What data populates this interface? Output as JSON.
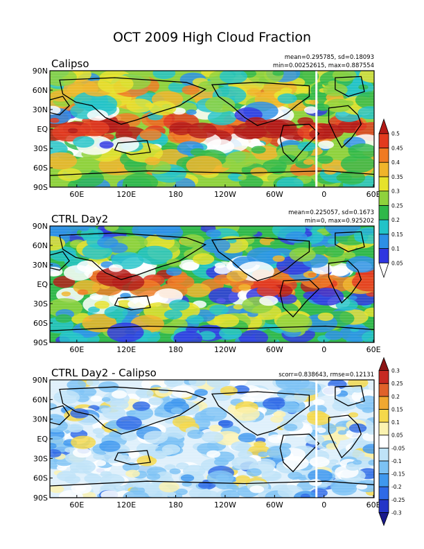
{
  "figure": {
    "title": "OCT 2009 High Cloud Fraction"
  },
  "panels": [
    {
      "id": "calipso",
      "label": "Calipso",
      "stats_line1": "mean=0.295785, sd=0.18093",
      "stats_line2": "min=0.00252615, max=0.887554",
      "colorbar": {
        "labels": [
          "0.05",
          "0.1",
          "0.15",
          "0.2",
          "0.25",
          "0.3",
          "0.35",
          "0.4",
          "0.45",
          "0.5"
        ],
        "colors": [
          "#ffffff",
          "#2f36e0",
          "#2c8fe6",
          "#22c3c8",
          "#2fb84a",
          "#8fd23c",
          "#e6e22b",
          "#f0b42a",
          "#ef7a22",
          "#e23a1e",
          "#b31a16"
        ]
      }
    },
    {
      "id": "ctrl",
      "label": "CTRL Day2",
      "stats_line1": "mean=0.225057, sd=0.1673",
      "stats_line2": "min=0, max=0.925202",
      "colorbar": {
        "labels": [
          "0.05",
          "0.1",
          "0.15",
          "0.2",
          "0.25",
          "0.3",
          "0.35",
          "0.4",
          "0.45",
          "0.5"
        ],
        "colors": [
          "#ffffff",
          "#2f36e0",
          "#2c8fe6",
          "#22c3c8",
          "#2fb84a",
          "#8fd23c",
          "#e6e22b",
          "#f0b42a",
          "#ef7a22",
          "#e23a1e",
          "#b31a16"
        ]
      }
    },
    {
      "id": "diff",
      "label": "CTRL Day2 - Calipso",
      "stats_line1": "scorr=0.838643, rmse=0.12131",
      "stats_line2": "",
      "colorbar": {
        "labels": [
          "-0.3",
          "-0.25",
          "-0.2",
          "-0.15",
          "-0.1",
          "-0.05",
          "0.05",
          "0.1",
          "0.15",
          "0.2",
          "0.25",
          "0.3"
        ],
        "colors": [
          "#1a1a8c",
          "#2435c8",
          "#2f6ae6",
          "#3f98ee",
          "#7cc2f4",
          "#bfe3f8",
          "#ffffff",
          "#fbf2b0",
          "#f5d84a",
          "#f0a830",
          "#e0622a",
          "#c72a22",
          "#8c1414"
        ]
      }
    }
  ],
  "axes": {
    "lat_labels": [
      "90N",
      "60N",
      "30N",
      "EQ",
      "30S",
      "60S",
      "90S"
    ],
    "lon_labels": [
      "60E",
      "120E",
      "180",
      "120W",
      "60W",
      "0",
      "60E"
    ]
  }
}
